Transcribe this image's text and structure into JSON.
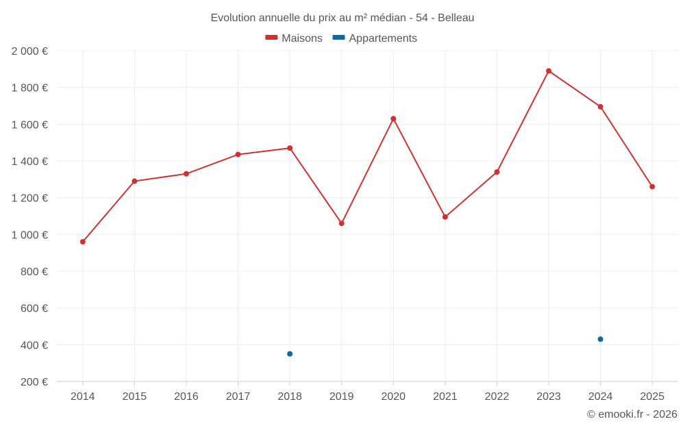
{
  "chart_data": {
    "type": "line",
    "title": "Evolution annuelle du prix au m² médian - 54 - Belleau",
    "categories": [
      "2014",
      "2015",
      "2016",
      "2017",
      "2018",
      "2019",
      "2020",
      "2021",
      "2022",
      "2023",
      "2024",
      "2025"
    ],
    "series": [
      {
        "name": "Maisons",
        "color": "#d32f2f",
        "values": [
          960,
          1290,
          1330,
          1435,
          1470,
          1060,
          1630,
          1095,
          1340,
          1890,
          1695,
          1260
        ]
      },
      {
        "name": "Appartements",
        "color": "#0b6aa2",
        "values": [
          null,
          null,
          null,
          null,
          350,
          null,
          null,
          null,
          null,
          null,
          430,
          null
        ]
      }
    ],
    "ylim": [
      200,
      2000
    ],
    "yticks": [
      200,
      400,
      600,
      800,
      1000,
      1200,
      1400,
      1600,
      1800,
      2000
    ],
    "ytick_labels": [
      "200 €",
      "400 €",
      "600 €",
      "800 €",
      "1 000 €",
      "1 200 €",
      "1 400 €",
      "1 600 €",
      "1 800 €",
      "2 000 €"
    ],
    "grid": true,
    "legend_position": "top-center"
  },
  "footer": "© emooki.fr - 2026"
}
